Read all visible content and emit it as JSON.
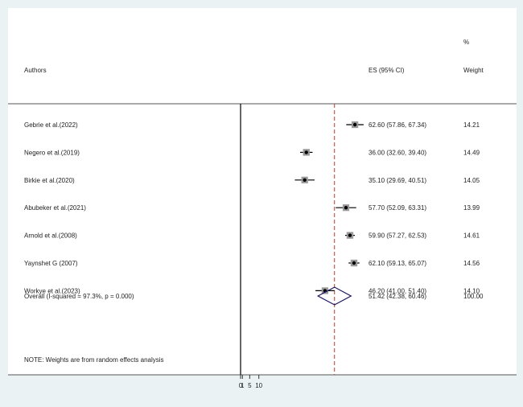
{
  "chart_data": {
    "type": "forest",
    "header": {
      "authors": "Authors",
      "es": "ES (95% CI)",
      "weight_pct": "%",
      "weight": "Weight"
    },
    "studies": [
      {
        "label": "Gebrie et al.(2022)",
        "es": 62.6,
        "lo": 57.86,
        "hi": 67.34,
        "weight": 14.21,
        "es_text": "62.60 (57.86, 67.34)",
        "weight_text": "14.21"
      },
      {
        "label": "Negero et al.(2019)",
        "es": 36.0,
        "lo": 32.6,
        "hi": 39.4,
        "weight": 14.49,
        "es_text": "36.00 (32.60, 39.40)",
        "weight_text": "14.49"
      },
      {
        "label": "Birkie et al.(2020)",
        "es": 35.1,
        "lo": 29.69,
        "hi": 40.51,
        "weight": 14.05,
        "es_text": "35.10 (29.69, 40.51)",
        "weight_text": "14.05"
      },
      {
        "label": "Abubeker et al.(2021)",
        "es": 57.7,
        "lo": 52.09,
        "hi": 63.31,
        "weight": 13.99,
        "es_text": "57.70 (52.09, 63.31)",
        "weight_text": "13.99"
      },
      {
        "label": "Arnold et al.(2008)",
        "es": 59.9,
        "lo": 57.27,
        "hi": 62.53,
        "weight": 14.61,
        "es_text": "59.90 (57.27, 62.53)",
        "weight_text": "14.61"
      },
      {
        "label": "Yaynshet G (2007)",
        "es": 62.1,
        "lo": 59.13,
        "hi": 65.07,
        "weight": 14.56,
        "es_text": "62.10 (59.13, 65.07)",
        "weight_text": "14.56"
      },
      {
        "label": "Workye et al.(2023)",
        "es": 46.2,
        "lo": 41.0,
        "hi": 51.4,
        "weight": 14.1,
        "es_text": "46.20 (41.00, 51.40)",
        "weight_text": "14.10"
      }
    ],
    "overall": {
      "label": "Overall  (I-squared = 97.3%, p = 0.000)",
      "es": 51.42,
      "lo": 42.38,
      "hi": 60.46,
      "weight": 100.0,
      "es_text": "51.42 (42.38, 60.46)",
      "weight_text": "100.00"
    },
    "note": "NOTE: Weights are from random effects analysis",
    "x_ticks": [
      "0",
      "1",
      "5",
      "10"
    ],
    "x_tick_values": [
      0,
      1,
      5,
      10
    ],
    "null_value": 0,
    "colors": {
      "background": "#eaf2f3",
      "plot": "#ffffff",
      "point": "#000000",
      "overall_diamond": "#1b1464",
      "overall_line": "#c0392b"
    }
  }
}
